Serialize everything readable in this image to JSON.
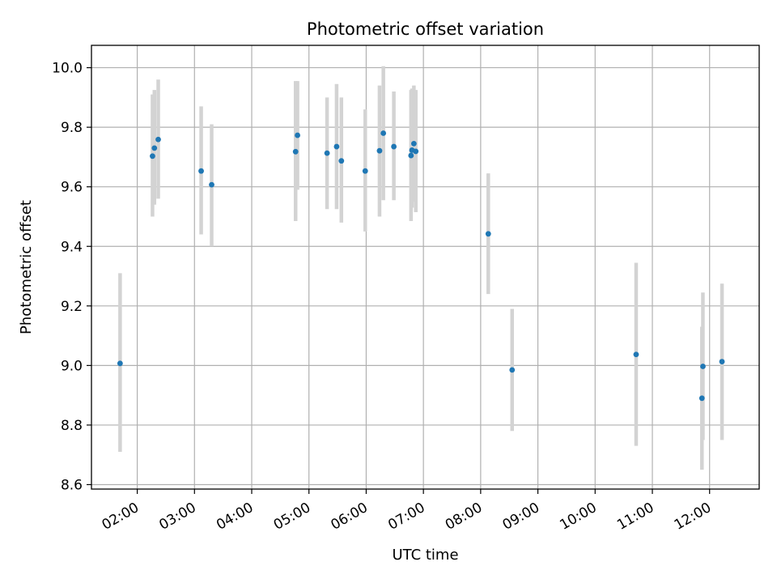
{
  "chart_data": {
    "type": "scatter",
    "title": "Photometric offset variation",
    "xlabel": "UTC time",
    "ylabel": "Photometric offset",
    "x_unit": "hours UTC",
    "xlim": [
      "01:12",
      "12:52"
    ],
    "ylim": [
      8.585,
      10.075
    ],
    "grid": true,
    "x_ticks": [
      "02:00",
      "03:00",
      "04:00",
      "05:00",
      "06:00",
      "07:00",
      "08:00",
      "09:00",
      "10:00",
      "11:00",
      "12:00"
    ],
    "y_ticks": [
      "8.6",
      "8.8",
      "9.0",
      "9.2",
      "9.4",
      "9.6",
      "9.8",
      "10.0"
    ],
    "point_color": "#1f77b4",
    "errorbar_color": "#d3d3d3",
    "series": [
      {
        "points": [
          {
            "x": "01:42",
            "y": 9.007,
            "ylow": 8.71,
            "yhigh": 9.31
          },
          {
            "x": "02:16",
            "y": 9.703,
            "ylow": 9.5,
            "yhigh": 9.91
          },
          {
            "x": "02:18",
            "y": 9.73,
            "ylow": 9.54,
            "yhigh": 9.925
          },
          {
            "x": "02:22",
            "y": 9.759,
            "ylow": 9.56,
            "yhigh": 9.96
          },
          {
            "x": "03:07",
            "y": 9.653,
            "ylow": 9.44,
            "yhigh": 9.87
          },
          {
            "x": "03:18",
            "y": 9.607,
            "ylow": 9.4,
            "yhigh": 9.81
          },
          {
            "x": "04:46",
            "y": 9.718,
            "ylow": 9.485,
            "yhigh": 9.955
          },
          {
            "x": "04:48",
            "y": 9.773,
            "ylow": 9.59,
            "yhigh": 9.955
          },
          {
            "x": "05:19",
            "y": 9.713,
            "ylow": 9.525,
            "yhigh": 9.9
          },
          {
            "x": "05:29",
            "y": 9.735,
            "ylow": 9.525,
            "yhigh": 9.945
          },
          {
            "x": "05:34",
            "y": 9.687,
            "ylow": 9.48,
            "yhigh": 9.9
          },
          {
            "x": "05:59",
            "y": 9.653,
            "ylow": 9.45,
            "yhigh": 9.86
          },
          {
            "x": "06:14",
            "y": 9.721,
            "ylow": 9.5,
            "yhigh": 9.94
          },
          {
            "x": "06:18",
            "y": 9.78,
            "ylow": 9.555,
            "yhigh": 10.005
          },
          {
            "x": "06:29",
            "y": 9.735,
            "ylow": 9.555,
            "yhigh": 9.92
          },
          {
            "x": "06:47",
            "y": 9.705,
            "ylow": 9.485,
            "yhigh": 9.925
          },
          {
            "x": "06:48",
            "y": 9.723,
            "ylow": 9.53,
            "yhigh": 9.93
          },
          {
            "x": "06:50",
            "y": 9.745,
            "ylow": 9.55,
            "yhigh": 9.94
          },
          {
            "x": "06:52",
            "y": 9.719,
            "ylow": 9.515,
            "yhigh": 9.925
          },
          {
            "x": "08:08",
            "y": 9.442,
            "ylow": 9.24,
            "yhigh": 9.645
          },
          {
            "x": "08:33",
            "y": 8.985,
            "ylow": 8.78,
            "yhigh": 9.19
          },
          {
            "x": "10:43",
            "y": 9.037,
            "ylow": 8.73,
            "yhigh": 9.345
          },
          {
            "x": "11:52",
            "y": 8.89,
            "ylow": 8.65,
            "yhigh": 9.13
          },
          {
            "x": "11:53",
            "y": 8.997,
            "ylow": 8.75,
            "yhigh": 9.245
          },
          {
            "x": "12:13",
            "y": 9.013,
            "ylow": 8.75,
            "yhigh": 9.275
          }
        ]
      }
    ]
  }
}
